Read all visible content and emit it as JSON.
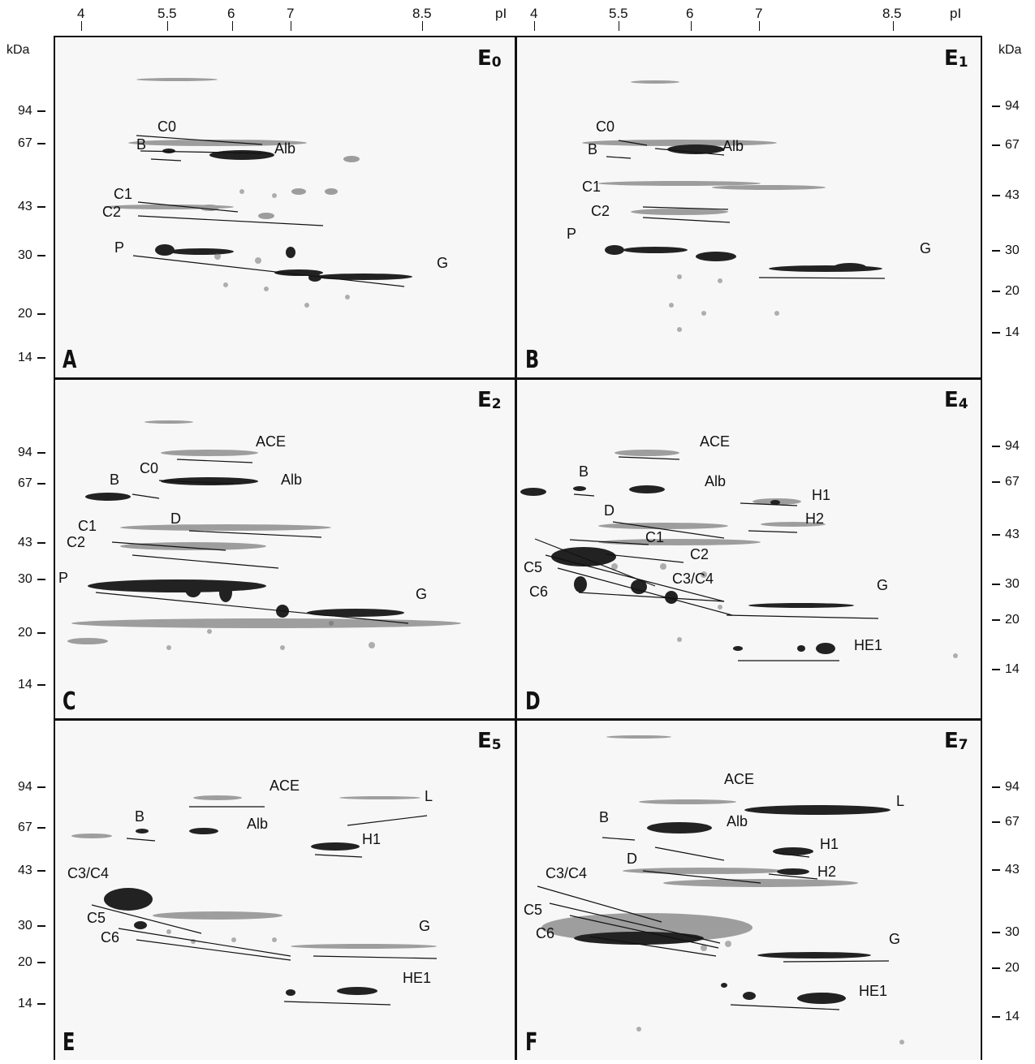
{
  "axes": {
    "ph_label": "pI",
    "mw_unit": "kDa",
    "ph_ticks": [
      "4",
      "5.5",
      "6",
      "7",
      "8.5"
    ],
    "left_mw_rows": {
      "A": [
        "94",
        "67",
        "43",
        "30",
        "20",
        "14"
      ],
      "C": [
        "94",
        "67",
        "43",
        "30",
        "20",
        "14"
      ],
      "E": [
        "94",
        "67",
        "43",
        "30",
        "20",
        "14"
      ]
    },
    "right_mw_rows": {
      "B": [
        "94",
        "67",
        "43",
        "30",
        "20",
        "14"
      ],
      "D": [
        "94",
        "67",
        "43",
        "30",
        "20",
        "14"
      ],
      "F": [
        "94",
        "67",
        "43",
        "30",
        "20",
        "14"
      ]
    }
  },
  "panels": {
    "A": {
      "letter": "A",
      "stage": "E",
      "stage_sub": "0",
      "labels": [
        "C0",
        "B",
        "Alb",
        "C1",
        "C2",
        "P",
        "G"
      ]
    },
    "B": {
      "letter": "B",
      "stage": "E",
      "stage_sub": "1",
      "labels": [
        "C0",
        "B",
        "Alb",
        "C1",
        "C2",
        "P",
        "G"
      ]
    },
    "C": {
      "letter": "C",
      "stage": "E",
      "stage_sub": "2",
      "labels": [
        "ACE",
        "C0",
        "B",
        "Alb",
        "C1",
        "D",
        "C2",
        "P",
        "G"
      ]
    },
    "D": {
      "letter": "D",
      "stage": "E",
      "stage_sub": "4",
      "labels": [
        "ACE",
        "B",
        "Alb",
        "H1",
        "D",
        "H2",
        "C1",
        "C2",
        "C5",
        "C3/C4",
        "C6",
        "G",
        "HE1"
      ]
    },
    "E": {
      "letter": "E",
      "stage": "E",
      "stage_sub": "5",
      "labels": [
        "ACE",
        "L",
        "B",
        "Alb",
        "H1",
        "C3/C4",
        "C5",
        "C6",
        "G",
        "HE1"
      ]
    },
    "F": {
      "letter": "F",
      "stage": "E",
      "stage_sub": "7",
      "labels": [
        "ACE",
        "L",
        "B",
        "Alb",
        "H1",
        "D",
        "H2",
        "C3/C4",
        "C5",
        "C6",
        "G",
        "HE1"
      ]
    }
  }
}
